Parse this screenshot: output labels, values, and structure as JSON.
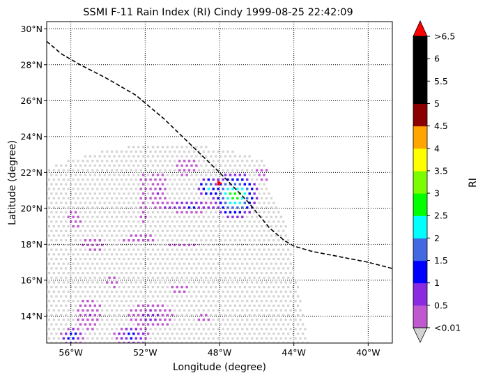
{
  "title": "SSMI F-11 Rain Index (RI) Cindy 1999-08-25 22:42:09",
  "xlabel": "Longitude (degree)",
  "ylabel": "Latitude (degree)",
  "xticks": [
    "56°W",
    "52°W",
    "48°W",
    "44°W",
    "40°W"
  ],
  "yticks": [
    "14°N",
    "16°N",
    "18°N",
    "20°N",
    "22°N",
    "24°N",
    "26°N",
    "28°N",
    "30°N"
  ],
  "colorbar": {
    "label": "RI",
    "ticks": [
      "<0.01",
      "0.5",
      "1",
      "1.5",
      "2",
      "2.5",
      "3",
      "3.5",
      "4",
      "4.5",
      "5",
      "5.5",
      "6",
      ">6.5"
    ],
    "colors": [
      "#c059d0",
      "#8a2be2",
      "#0000ff",
      "#4169e1",
      "#00ffff",
      "#00ff00",
      "#7cfc00",
      "#ffff00",
      "#ffa500",
      "#8b0000",
      "#000000",
      "#000000",
      "#000000"
    ],
    "under_color": "#d3d3d3",
    "over_color": "#ff0000",
    "swath_no_rain_color": "#d3d3d3"
  },
  "chart_data": {
    "type": "map",
    "title": "SSMI F-11 Rain Index (RI) Cindy 1999-08-25 22:42:09",
    "xlabel": "Longitude (degree)",
    "ylabel": "Latitude (degree)",
    "xlim": [
      -57.3,
      -38.7
    ],
    "ylim": [
      12.5,
      30.4
    ],
    "grid": true,
    "storm_track": {
      "name": "",
      "style": "dashed",
      "color": "#000000",
      "lon": [
        -57.3,
        -56.5,
        -55.5,
        -54.0,
        -52.5,
        -51.0,
        -49.5,
        -48.0,
        -46.5,
        -45.3,
        -44.5,
        -44.0,
        -43.0,
        -42.0,
        -40.0,
        -38.7
      ],
      "lat": [
        29.3,
        28.6,
        28.0,
        27.2,
        26.3,
        25.0,
        23.5,
        22.0,
        20.4,
        18.9,
        18.2,
        17.9,
        17.6,
        17.4,
        17.0,
        16.65
      ]
    },
    "center_marker": {
      "lon": -48.0,
      "lat": 21.4,
      "color": "#ff0000"
    },
    "swath": {
      "top_lat": 23.6,
      "left_edge_lon": -57.3,
      "right_edge": [
        [
          -45.6,
          21.6
        ],
        [
          -44.5,
          19.5
        ],
        [
          -43.2,
          12.5
        ]
      ]
    },
    "rain_clusters": [
      {
        "lon": -47.2,
        "lat": 20.7,
        "rlon": 1.3,
        "rlat": 1.3,
        "peak": 3.2
      },
      {
        "lon": -48.6,
        "lat": 21.2,
        "rlon": 0.6,
        "rlat": 0.6,
        "peak": 2.4
      },
      {
        "lon": -49.6,
        "lat": 20.1,
        "rlon": 2.1,
        "rlat": 0.35,
        "peak": 1.2
      },
      {
        "lon": -51.3,
        "lat": 21.0,
        "rlon": 0.5,
        "rlat": 1.1,
        "peak": 0.6
      },
      {
        "lon": -52.1,
        "lat": 20.6,
        "rlon": 0.25,
        "rlat": 1.4,
        "peak": 0.4
      },
      {
        "lon": -49.8,
        "lat": 22.3,
        "rlon": 0.6,
        "rlat": 0.5,
        "peak": 0.5
      },
      {
        "lon": -45.7,
        "lat": 21.9,
        "rlon": 0.35,
        "rlat": 0.4,
        "peak": 0.4
      },
      {
        "lon": -55.8,
        "lat": 19.4,
        "rlon": 0.4,
        "rlat": 0.5,
        "peak": 0.3
      },
      {
        "lon": -54.8,
        "lat": 18.0,
        "rlon": 0.6,
        "rlat": 0.4,
        "peak": 0.3
      },
      {
        "lon": -52.3,
        "lat": 18.3,
        "rlon": 1.0,
        "rlat": 0.25,
        "peak": 0.3
      },
      {
        "lon": -50.1,
        "lat": 18.0,
        "rlon": 0.8,
        "rlat": 0.2,
        "peak": 0.2
      },
      {
        "lon": -55.9,
        "lat": 12.9,
        "rlon": 0.7,
        "rlat": 0.5,
        "peak": 1.6
      },
      {
        "lon": -55.0,
        "lat": 14.1,
        "rlon": 0.7,
        "rlat": 0.9,
        "peak": 0.6
      },
      {
        "lon": -52.7,
        "lat": 12.9,
        "rlon": 1.0,
        "rlat": 0.6,
        "peak": 1.3
      },
      {
        "lon": -51.7,
        "lat": 14.0,
        "rlon": 1.2,
        "rlat": 0.7,
        "peak": 0.8
      },
      {
        "lon": -50.1,
        "lat": 15.5,
        "rlon": 0.5,
        "rlat": 0.3,
        "peak": 0.3
      },
      {
        "lon": -53.7,
        "lat": 15.9,
        "rlon": 0.4,
        "rlat": 0.3,
        "peak": 0.3
      },
      {
        "lon": -48.9,
        "lat": 13.9,
        "rlon": 0.35,
        "rlat": 0.3,
        "peak": 0.3
      }
    ]
  }
}
